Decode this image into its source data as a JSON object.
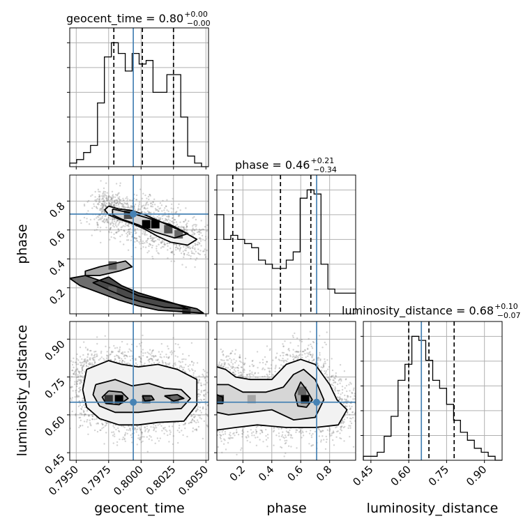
{
  "chart_data": {
    "type": "corner",
    "parameters": [
      {
        "name": "geocent_time",
        "title": "geocent_time = 0.80",
        "title_median": "0.80",
        "title_plus": "+0.00",
        "title_minus": "−0.00",
        "xlabel": "geocent_time",
        "range": [
          0.7945,
          0.8052
        ],
        "ticks": [
          0.795,
          0.7975,
          0.8,
          0.8025,
          0.805
        ],
        "tick_labels": [
          "0.7950",
          "0.7975",
          "0.8000",
          "0.8025",
          "0.8050"
        ],
        "quantiles": [
          0.7979,
          0.8001,
          0.8025
        ],
        "truth": 0.7994,
        "histogram": {
          "edges_start": 0.7945,
          "bin_width": 0.000535,
          "counts": [
            1,
            2,
            4,
            6,
            18,
            31,
            35,
            32,
            27,
            32,
            29,
            30,
            21,
            21,
            26,
            26,
            14,
            3,
            1,
            0
          ]
        }
      },
      {
        "name": "phase",
        "title": "phase = 0.46",
        "title_median": "0.46",
        "title_plus": "+0.21",
        "title_minus": "−0.34",
        "xlabel": "phase",
        "ylabel": "phase",
        "range": [
          0.02,
          0.98
        ],
        "ticks": [
          0.2,
          0.4,
          0.6,
          0.8
        ],
        "tick_labels": [
          "0.2",
          "0.4",
          "0.6",
          "0.8"
        ],
        "quantiles": [
          0.13,
          0.46,
          0.67
        ],
        "truth": 0.71,
        "histogram": {
          "edges_start": 0.02,
          "bin_width": 0.048,
          "counts": [
            24,
            18,
            19,
            18,
            17,
            16,
            13,
            12,
            11,
            11,
            13,
            15,
            28,
            30,
            29,
            12,
            6,
            5,
            5,
            5
          ]
        }
      },
      {
        "name": "luminosity_distance",
        "title": "luminosity_distance = 0.68",
        "title_median": "0.68",
        "title_plus": "+0.10",
        "title_minus": "−0.07",
        "xlabel": "luminosity_distance",
        "ylabel": "luminosity_distance",
        "range": [
          0.42,
          0.97
        ],
        "ticks": [
          0.45,
          0.6,
          0.75,
          0.9
        ],
        "tick_labels": [
          "0.45",
          "0.60",
          "0.75",
          "0.90"
        ],
        "quantiles": [
          0.6,
          0.68,
          0.78
        ],
        "truth": 0.65,
        "histogram": {
          "edges_start": 0.42,
          "bin_width": 0.0275,
          "counts": [
            1,
            1,
            2,
            6,
            11,
            20,
            24,
            31,
            30,
            25,
            20,
            18,
            14,
            10,
            7,
            5,
            3,
            2,
            1,
            0
          ]
        }
      }
    ],
    "pair_contours": [
      {
        "x": "geocent_time",
        "y": "phase",
        "levels": [
          [
            [
              0.7975,
              0.765
            ],
            [
              0.7983,
              0.745
            ],
            [
              0.7993,
              0.735
            ],
            [
              0.8003,
              0.705
            ],
            [
              0.8013,
              0.665
            ],
            [
              0.8023,
              0.625
            ],
            [
              0.8033,
              0.585
            ],
            [
              0.8043,
              0.535
            ],
            [
              0.8036,
              0.495
            ],
            [
              0.8023,
              0.515
            ],
            [
              0.8013,
              0.555
            ],
            [
              0.8003,
              0.605
            ],
            [
              0.7993,
              0.645
            ],
            [
              0.7983,
              0.675
            ],
            [
              0.7975,
              0.705
            ],
            [
              0.7972,
              0.74
            ],
            [
              0.7975,
              0.765
            ]
          ],
          [
            [
              0.7978,
              0.745
            ],
            [
              0.7993,
              0.715
            ],
            [
              0.8008,
              0.675
            ],
            [
              0.8023,
              0.635
            ],
            [
              0.8036,
              0.575
            ],
            [
              0.8026,
              0.545
            ],
            [
              0.8011,
              0.585
            ],
            [
              0.7998,
              0.635
            ],
            [
              0.7985,
              0.675
            ],
            [
              0.7978,
              0.705
            ],
            [
              0.7978,
              0.745
            ]
          ],
          [
            [
              0.7957,
              0.285
            ],
            [
              0.7968,
              0.285
            ],
            [
              0.7983,
              0.315
            ],
            [
              0.7993,
              0.345
            ],
            [
              0.7988,
              0.385
            ],
            [
              0.7968,
              0.345
            ],
            [
              0.7957,
              0.315
            ],
            [
              0.7957,
              0.285
            ]
          ],
          [
            [
              0.7957,
              0.285
            ],
            [
              0.7973,
              0.235
            ],
            [
              0.7988,
              0.185
            ],
            [
              0.7998,
              0.145
            ],
            [
              0.8013,
              0.115
            ],
            [
              0.8028,
              0.085
            ],
            [
              0.8043,
              0.055
            ],
            [
              0.8048,
              0.025
            ],
            [
              0.8013,
              0.045
            ],
            [
              0.7998,
              0.075
            ],
            [
              0.7983,
              0.115
            ],
            [
              0.7968,
              0.165
            ],
            [
              0.7953,
              0.215
            ],
            [
              0.7945,
              0.265
            ],
            [
              0.7957,
              0.285
            ]
          ],
          [
            [
              0.7975,
              0.275
            ],
            [
              0.7985,
              0.215
            ],
            [
              0.7998,
              0.165
            ],
            [
              0.8013,
              0.125
            ],
            [
              0.8028,
              0.085
            ],
            [
              0.8036,
              0.055
            ],
            [
              0.8018,
              0.065
            ],
            [
              0.8003,
              0.095
            ],
            [
              0.7988,
              0.135
            ],
            [
              0.7975,
              0.185
            ],
            [
              0.7963,
              0.235
            ],
            [
              0.7975,
              0.275
            ]
          ]
        ],
        "dense_cells": [
          [
            0.8004,
            0.64,
            1
          ],
          [
            0.8011,
            0.64,
            1
          ],
          [
            0.8021,
            0.605,
            0.7
          ],
          [
            0.8029,
            0.57,
            0.6
          ],
          [
            0.799,
            0.705,
            0.7
          ],
          [
            0.8035,
            0.035,
            0.8
          ],
          [
            0.7978,
            0.355,
            0.6
          ],
          [
            0.7978,
            0.18,
            0.6
          ]
        ],
        "truth": [
          0.7994,
          0.71
        ],
        "scatter_count": 1200
      },
      {
        "x": "geocent_time",
        "y": "luminosity_distance",
        "levels": [
          [
            [
              0.7958,
              0.78
            ],
            [
              0.7975,
              0.815
            ],
            [
              0.7985,
              0.8
            ],
            [
              0.7998,
              0.79
            ],
            [
              0.8013,
              0.8
            ],
            [
              0.8028,
              0.78
            ],
            [
              0.8043,
              0.74
            ],
            [
              0.8043,
              0.64
            ],
            [
              0.8033,
              0.575
            ],
            [
              0.8013,
              0.57
            ],
            [
              0.7998,
              0.56
            ],
            [
              0.7983,
              0.56
            ],
            [
              0.7968,
              0.585
            ],
            [
              0.7958,
              0.63
            ],
            [
              0.7955,
              0.7
            ],
            [
              0.7958,
              0.78
            ]
          ],
          [
            [
              0.7965,
              0.72
            ],
            [
              0.798,
              0.74
            ],
            [
              0.7993,
              0.715
            ],
            [
              0.8006,
              0.725
            ],
            [
              0.8018,
              0.705
            ],
            [
              0.8031,
              0.7
            ],
            [
              0.8038,
              0.665
            ],
            [
              0.8031,
              0.625
            ],
            [
              0.8015,
              0.62
            ],
            [
              0.7998,
              0.61
            ],
            [
              0.798,
              0.61
            ],
            [
              0.7968,
              0.635
            ],
            [
              0.7963,
              0.68
            ],
            [
              0.7965,
              0.72
            ]
          ],
          [
            [
              0.7975,
              0.695
            ],
            [
              0.7985,
              0.69
            ],
            [
              0.799,
              0.665
            ],
            [
              0.7983,
              0.64
            ],
            [
              0.7973,
              0.645
            ],
            [
              0.797,
              0.67
            ],
            [
              0.7975,
              0.695
            ]
          ],
          [
            [
              0.8001,
              0.675
            ],
            [
              0.8008,
              0.675
            ],
            [
              0.801,
              0.66
            ],
            [
              0.8003,
              0.655
            ],
            [
              0.8001,
              0.675
            ]
          ],
          [
            [
              0.8018,
              0.675
            ],
            [
              0.8028,
              0.68
            ],
            [
              0.8033,
              0.665
            ],
            [
              0.8025,
              0.655
            ],
            [
              0.8018,
              0.675
            ]
          ]
        ],
        "dense_cells": [
          [
            0.7983,
            0.662,
            1
          ],
          [
            0.7975,
            0.662,
            0.8
          ],
          [
            0.8004,
            0.662,
            0.7
          ],
          [
            0.8026,
            0.662,
            0.6
          ]
        ],
        "truth": [
          0.7994,
          0.65
        ],
        "scatter_count": 1400
      },
      {
        "x": "phase",
        "y": "luminosity_distance",
        "levels": [
          [
            [
              0.02,
              0.79
            ],
            [
              0.08,
              0.78
            ],
            [
              0.15,
              0.75
            ],
            [
              0.25,
              0.74
            ],
            [
              0.4,
              0.74
            ],
            [
              0.5,
              0.8
            ],
            [
              0.6,
              0.82
            ],
            [
              0.7,
              0.8
            ],
            [
              0.8,
              0.72
            ],
            [
              0.85,
              0.66
            ],
            [
              0.92,
              0.62
            ],
            [
              0.86,
              0.56
            ],
            [
              0.7,
              0.55
            ],
            [
              0.5,
              0.55
            ],
            [
              0.3,
              0.56
            ],
            [
              0.15,
              0.55
            ],
            [
              0.02,
              0.54
            ]
          ],
          [
            [
              0.02,
              0.72
            ],
            [
              0.1,
              0.72
            ],
            [
              0.2,
              0.69
            ],
            [
              0.36,
              0.69
            ],
            [
              0.48,
              0.71
            ],
            [
              0.55,
              0.76
            ],
            [
              0.62,
              0.78
            ],
            [
              0.7,
              0.74
            ],
            [
              0.76,
              0.66
            ],
            [
              0.7,
              0.59
            ],
            [
              0.55,
              0.58
            ],
            [
              0.4,
              0.62
            ],
            [
              0.25,
              0.61
            ],
            [
              0.1,
              0.6
            ],
            [
              0.02,
              0.61
            ]
          ],
          [
            [
              0.56,
              0.68
            ],
            [
              0.6,
              0.73
            ],
            [
              0.64,
              0.7
            ],
            [
              0.68,
              0.66
            ],
            [
              0.64,
              0.63
            ],
            [
              0.58,
              0.635
            ],
            [
              0.56,
              0.68
            ]
          ],
          [
            [
              0.02,
              0.68
            ],
            [
              0.06,
              0.67
            ],
            [
              0.06,
              0.645
            ],
            [
              0.02,
              0.645
            ]
          ]
        ],
        "dense_cells": [
          [
            0.63,
            0.662,
            1
          ],
          [
            0.61,
            0.695,
            0.6
          ],
          [
            0.04,
            0.662,
            0.8
          ],
          [
            0.26,
            0.662,
            0.35
          ]
        ],
        "truth": [
          0.71,
          0.65
        ],
        "scatter_count": 1400
      }
    ]
  }
}
